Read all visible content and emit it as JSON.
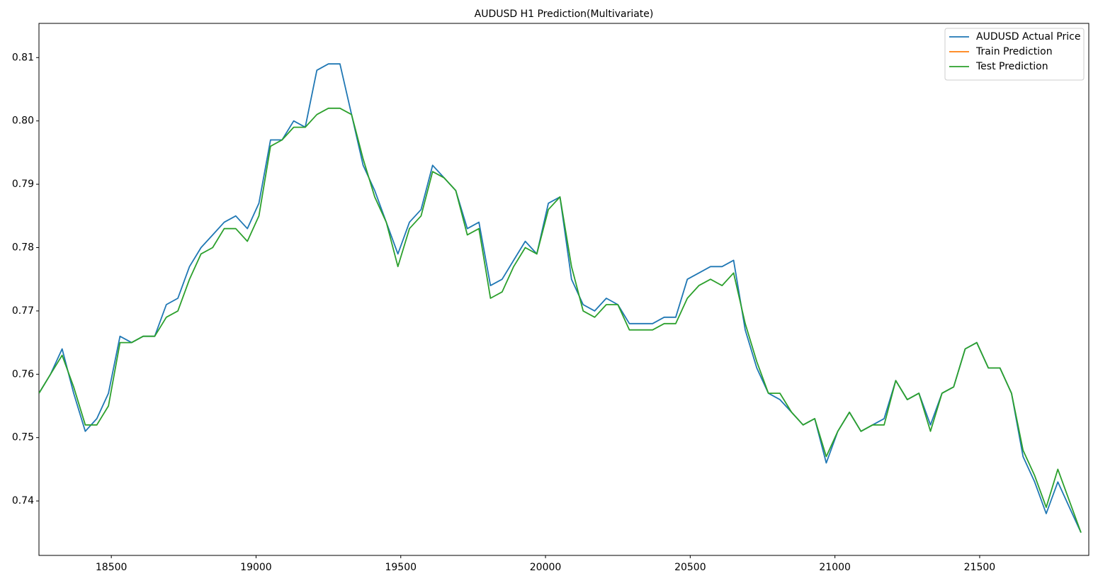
{
  "chart_data": {
    "type": "line",
    "title": "AUDUSD H1 Prediction(Multivariate)",
    "x": [
      18250,
      18290,
      18330,
      18370,
      18410,
      18450,
      18490,
      18530,
      18570,
      18610,
      18650,
      18690,
      18730,
      18770,
      18810,
      18850,
      18890,
      18930,
      18970,
      19010,
      19050,
      19090,
      19130,
      19170,
      19210,
      19250,
      19290,
      19330,
      19370,
      19410,
      19450,
      19490,
      19530,
      19570,
      19610,
      19650,
      19690,
      19730,
      19770,
      19810,
      19850,
      19890,
      19930,
      19970,
      20010,
      20050,
      20090,
      20130,
      20170,
      20210,
      20250,
      20290,
      20330,
      20370,
      20410,
      20450,
      20490,
      20530,
      20570,
      20610,
      20650,
      20690,
      20730,
      20770,
      20810,
      20850,
      20890,
      20930,
      20970,
      21010,
      21050,
      21090,
      21130,
      21170,
      21210,
      21250,
      21290,
      21330,
      21370,
      21410,
      21450,
      21490,
      21530,
      21570,
      21610,
      21650,
      21690,
      21730,
      21770,
      21810,
      21850
    ],
    "series": [
      {
        "name": "AUDUSD Actual Price",
        "color": "#1f77b4",
        "values": [
          0.757,
          0.76,
          0.764,
          0.757,
          0.751,
          0.753,
          0.757,
          0.766,
          0.765,
          0.766,
          0.766,
          0.771,
          0.772,
          0.777,
          0.78,
          0.782,
          0.784,
          0.785,
          0.783,
          0.787,
          0.797,
          0.797,
          0.8,
          0.799,
          0.808,
          0.809,
          0.809,
          0.801,
          0.793,
          0.789,
          0.784,
          0.779,
          0.784,
          0.786,
          0.793,
          0.791,
          0.789,
          0.783,
          0.784,
          0.774,
          0.775,
          0.778,
          0.781,
          0.779,
          0.787,
          0.788,
          0.775,
          0.771,
          0.77,
          0.772,
          0.771,
          0.768,
          0.768,
          0.768,
          0.769,
          0.769,
          0.775,
          0.776,
          0.777,
          0.777,
          0.778,
          0.767,
          0.761,
          0.757,
          0.756,
          0.754,
          0.752,
          0.753,
          0.746,
          0.751,
          0.754,
          0.751,
          0.752,
          0.753,
          0.759,
          0.756,
          0.757,
          0.752,
          0.757,
          0.758,
          0.764,
          0.765,
          0.761,
          0.761,
          0.757,
          0.747,
          0.743,
          0.738,
          0.743,
          0.739,
          0.735
        ]
      },
      {
        "name": "Train Prediction",
        "color": "#ff7f0e",
        "values": [
          null,
          null,
          null,
          null,
          null,
          null,
          null,
          null,
          null,
          null,
          null,
          null,
          null,
          null,
          null,
          null,
          null,
          null,
          null,
          null,
          null,
          null,
          null,
          null,
          null,
          null,
          null,
          null,
          null,
          null,
          null,
          null,
          null,
          null,
          null,
          null,
          null,
          null,
          null,
          null,
          null,
          null,
          null,
          null,
          null,
          null,
          null,
          null,
          null,
          null,
          null,
          null,
          null,
          null,
          null,
          null,
          null,
          null,
          null,
          null,
          null,
          null,
          null,
          null,
          null,
          null,
          null,
          null,
          null,
          null,
          null,
          null,
          null,
          null,
          null,
          null,
          null,
          null,
          null,
          null,
          null,
          null,
          null,
          null,
          null,
          null,
          null,
          null,
          null,
          null,
          null
        ]
      },
      {
        "name": "Test Prediction",
        "color": "#2ca02c",
        "values": [
          0.757,
          0.76,
          0.763,
          0.758,
          0.752,
          0.752,
          0.755,
          0.765,
          0.765,
          0.766,
          0.766,
          0.769,
          0.77,
          0.775,
          0.779,
          0.78,
          0.783,
          0.783,
          0.781,
          0.785,
          0.796,
          0.797,
          0.799,
          0.799,
          0.801,
          0.802,
          0.802,
          0.801,
          0.794,
          0.788,
          0.784,
          0.777,
          0.783,
          0.785,
          0.792,
          0.791,
          0.789,
          0.782,
          0.783,
          0.772,
          0.773,
          0.777,
          0.78,
          0.779,
          0.786,
          0.788,
          0.777,
          0.77,
          0.769,
          0.771,
          0.771,
          0.767,
          0.767,
          0.767,
          0.768,
          0.768,
          0.772,
          0.774,
          0.775,
          0.774,
          0.776,
          0.768,
          0.762,
          0.757,
          0.757,
          0.754,
          0.752,
          0.753,
          0.747,
          0.751,
          0.754,
          0.751,
          0.752,
          0.752,
          0.759,
          0.756,
          0.757,
          0.751,
          0.757,
          0.758,
          0.764,
          0.765,
          0.761,
          0.761,
          0.757,
          0.748,
          0.744,
          0.739,
          0.745,
          0.74,
          0.735
        ]
      }
    ],
    "xlim": [
      18250,
      21877
    ],
    "ylim": [
      0.7314,
      0.8154
    ],
    "xticks": [
      18500,
      19000,
      19500,
      20000,
      20500,
      21000,
      21500
    ],
    "yticks": [
      0.74,
      0.75,
      0.76,
      0.77,
      0.78,
      0.79,
      {
        "value": 0.8,
        "label": "0.80"
      },
      0.81
    ],
    "grid": false,
    "legend": "upper right"
  }
}
